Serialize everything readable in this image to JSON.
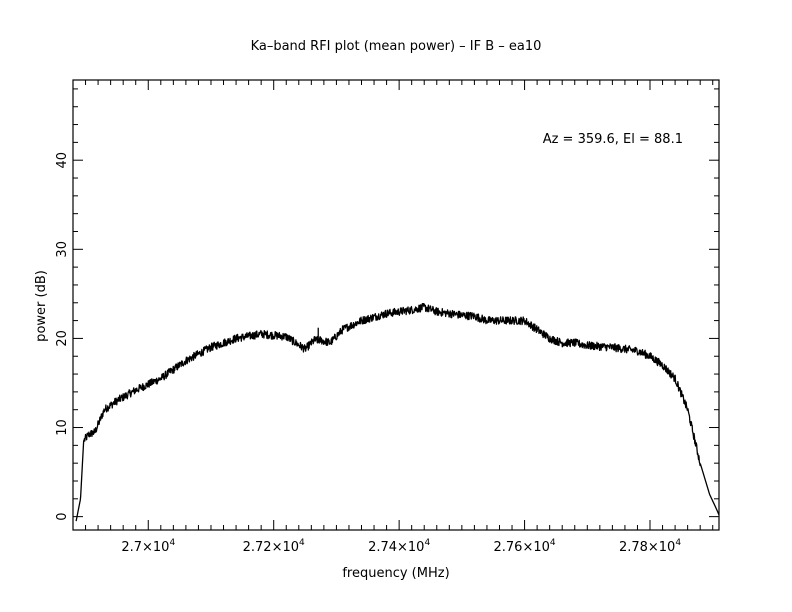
{
  "chart_data": {
    "type": "line",
    "title": "Ka–band RFI plot (mean power) – IF B – ea10",
    "annotation": "Az = 359.6, El = 88.1",
    "xlabel": "frequency (MHz)",
    "ylabel": "power (dB)",
    "xlim": [
      26880,
      27910
    ],
    "ylim": [
      -1.5,
      49
    ],
    "x_ticks": [
      {
        "value": 27000,
        "label": "2.7×10",
        "exp": "4"
      },
      {
        "value": 27200,
        "label": "2.72×10",
        "exp": "4"
      },
      {
        "value": 27400,
        "label": "2.74×10",
        "exp": "4"
      },
      {
        "value": 27600,
        "label": "2.76×10",
        "exp": "4"
      },
      {
        "value": 27800,
        "label": "2.78×10",
        "exp": "4"
      }
    ],
    "y_ticks": [
      {
        "value": 0,
        "label": "0"
      },
      {
        "value": 10,
        "label": "10"
      },
      {
        "value": 20,
        "label": "20"
      },
      {
        "value": 30,
        "label": "30"
      },
      {
        "value": 40,
        "label": "40"
      }
    ],
    "grid": false,
    "series": [
      {
        "color": "#000000",
        "x": [
          26885,
          26892,
          26897,
          26905,
          26915,
          26930,
          26950,
          26980,
          27020,
          27060,
          27100,
          27140,
          27180,
          27220,
          27250,
          27265,
          27275,
          27290,
          27310,
          27340,
          27380,
          27420,
          27440,
          27460,
          27480,
          27500,
          27520,
          27540,
          27560,
          27580,
          27600,
          27620,
          27640,
          27660,
          27680,
          27700,
          27740,
          27780,
          27800,
          27820,
          27840,
          27860,
          27880,
          27895,
          27905,
          27910
        ],
        "y": [
          -0.5,
          2,
          8.5,
          9.2,
          9.5,
          12,
          13,
          14.2,
          15.5,
          17.5,
          19,
          20,
          20.5,
          20.2,
          18.8,
          19.8,
          19.8,
          19.5,
          21,
          22,
          22.8,
          23.2,
          23.5,
          23,
          22.8,
          22.6,
          22.5,
          22,
          22,
          22,
          22,
          21,
          20,
          19.5,
          19.5,
          19.2,
          19,
          18.6,
          18,
          17,
          15.5,
          12,
          6,
          2.5,
          1,
          0.2
        ]
      }
    ]
  }
}
